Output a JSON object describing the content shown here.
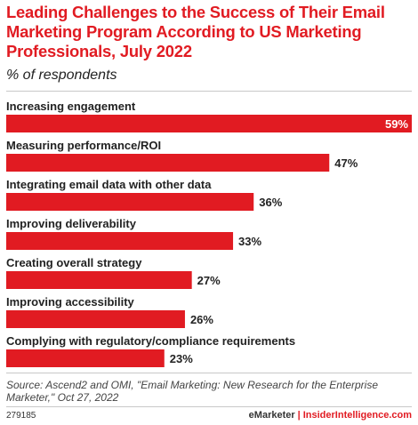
{
  "header": {
    "title": "Leading Challenges to the Success of Their Email Marketing Program According to US Marketing Professionals, July 2022",
    "subtitle": "% of respondents"
  },
  "chart_data": {
    "type": "bar",
    "orientation": "horizontal",
    "categories": [
      "Increasing engagement",
      "Measuring performance/ROI",
      "Integrating email data with other data",
      "Improving deliverability",
      "Creating overall strategy",
      "Improving accessibility",
      "Complying with regulatory/compliance requirements"
    ],
    "values": [
      59,
      47,
      36,
      33,
      27,
      26,
      23
    ],
    "value_labels": [
      "59%",
      "47%",
      "36%",
      "33%",
      "27%",
      "26%",
      "23%"
    ],
    "unit": "%",
    "xlim": [
      0,
      59
    ],
    "grid": false,
    "bar_color": "#e11b22"
  },
  "footer": {
    "source": "Source: Ascend2 and OMI, \"Email Marketing: New Research for the Enterprise Marketer,\" Oct 27, 2022",
    "chart_id": "279185",
    "brand_left": "eMarketer",
    "brand_sep": "|",
    "brand_right": "InsiderIntelligence.com"
  }
}
